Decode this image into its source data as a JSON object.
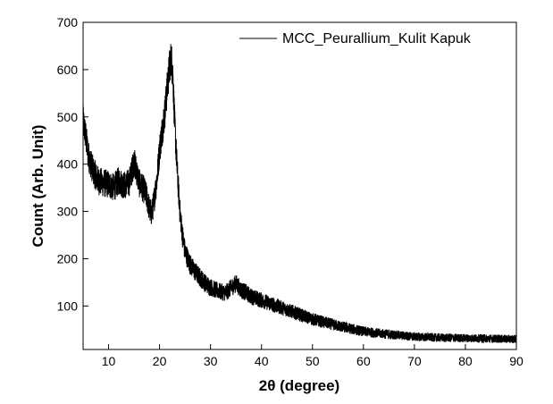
{
  "chart_data": {
    "type": "line",
    "title": "",
    "xlabel": "2θ (degree)",
    "ylabel": "Count (Arb. Unit)",
    "xlim": [
      5,
      90
    ],
    "ylim": [
      8,
      700
    ],
    "x_ticks": [
      10,
      20,
      30,
      40,
      50,
      60,
      70,
      80,
      90
    ],
    "y_ticks": [
      100,
      200,
      300,
      400,
      500,
      600,
      700
    ],
    "grid": false,
    "legend_position": "top-right",
    "series": [
      {
        "name": "MCC_Peurallium_Kulit Kapuk",
        "color": "#000000",
        "x": [
          5,
          5.5,
          6,
          7,
          8,
          9,
          10,
          11,
          12,
          13,
          14,
          15,
          15.5,
          16,
          17,
          17.5,
          18,
          18.5,
          19,
          19.5,
          20,
          20.5,
          21,
          21.5,
          22,
          22.3,
          22.6,
          23,
          23.5,
          24,
          24.5,
          25,
          26,
          27,
          28,
          29,
          30,
          31,
          32,
          33,
          34,
          35,
          36,
          37,
          38,
          40,
          42,
          45,
          50,
          55,
          60,
          65,
          70,
          75,
          80,
          85,
          90
        ],
        "y": [
          490,
          460,
          420,
          385,
          365,
          360,
          358,
          350,
          365,
          355,
          360,
          405,
          385,
          360,
          345,
          330,
          305,
          295,
          330,
          370,
          430,
          470,
          505,
          560,
          610,
          625,
          590,
          480,
          380,
          300,
          250,
          215,
          188,
          172,
          160,
          148,
          140,
          134,
          130,
          128,
          138,
          148,
          134,
          128,
          120,
          112,
          104,
          92,
          72,
          58,
          46,
          40,
          35,
          33,
          32,
          31,
          30
        ]
      }
    ]
  }
}
